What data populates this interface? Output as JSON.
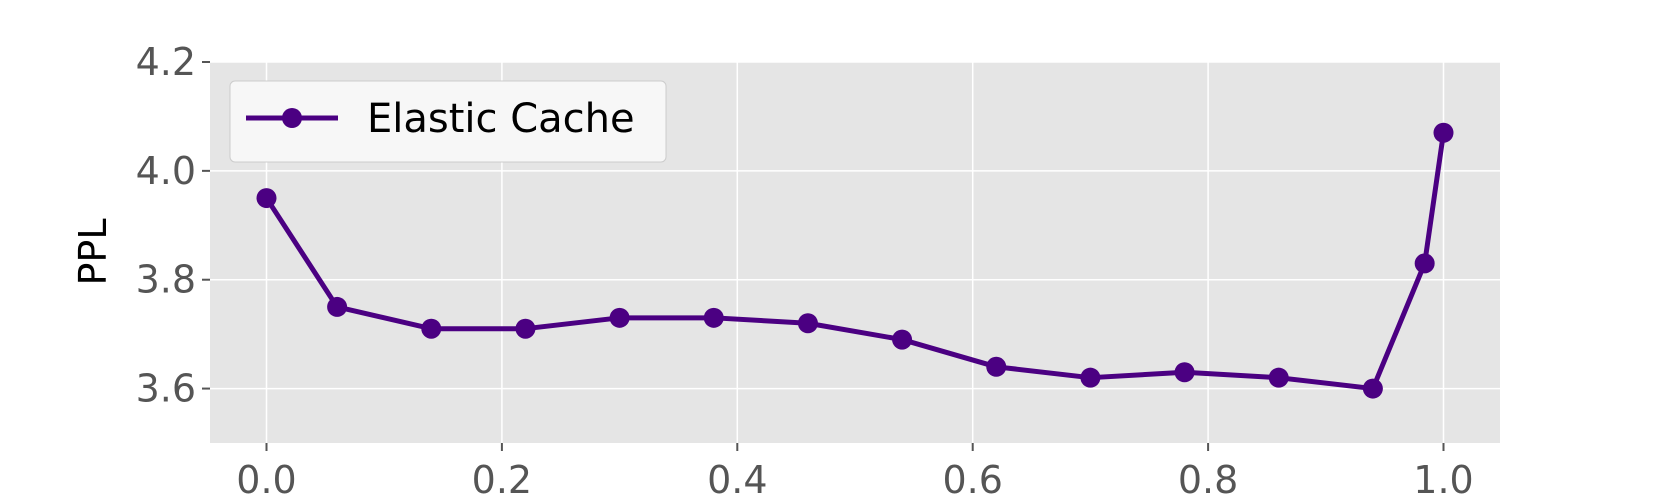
{
  "chart_data": {
    "type": "line",
    "title": "",
    "xlabel": "",
    "ylabel": "PPL",
    "xlim": [
      -0.048,
      1.048
    ],
    "ylim": [
      3.5,
      4.2
    ],
    "xticks": [
      0.0,
      0.2,
      0.4,
      0.6,
      0.8,
      1.0
    ],
    "xtick_labels": [
      "0.0",
      "0.2",
      "0.4",
      "0.6",
      "0.8",
      "1.0"
    ],
    "yticks": [
      3.6,
      3.8,
      4.0,
      4.2
    ],
    "ytick_labels": [
      "3.6",
      "3.8",
      "4.0",
      "4.2"
    ],
    "grid": true,
    "legend_position": "top-left",
    "series": [
      {
        "name": "Elastic Cache",
        "color": "#4b0082",
        "x": [
          0.0,
          0.06,
          0.14,
          0.22,
          0.3,
          0.38,
          0.46,
          0.54,
          0.62,
          0.7,
          0.78,
          0.86,
          0.94,
          0.984,
          1.0
        ],
        "y": [
          3.95,
          3.75,
          3.71,
          3.71,
          3.73,
          3.73,
          3.72,
          3.69,
          3.64,
          3.62,
          3.63,
          3.62,
          3.6,
          3.83,
          4.07
        ]
      }
    ]
  },
  "colors": {
    "plot_background": "#e5e5e5",
    "grid": "#ffffff",
    "legend_background": "#f7f7f7",
    "legend_border": "#cccccc"
  }
}
